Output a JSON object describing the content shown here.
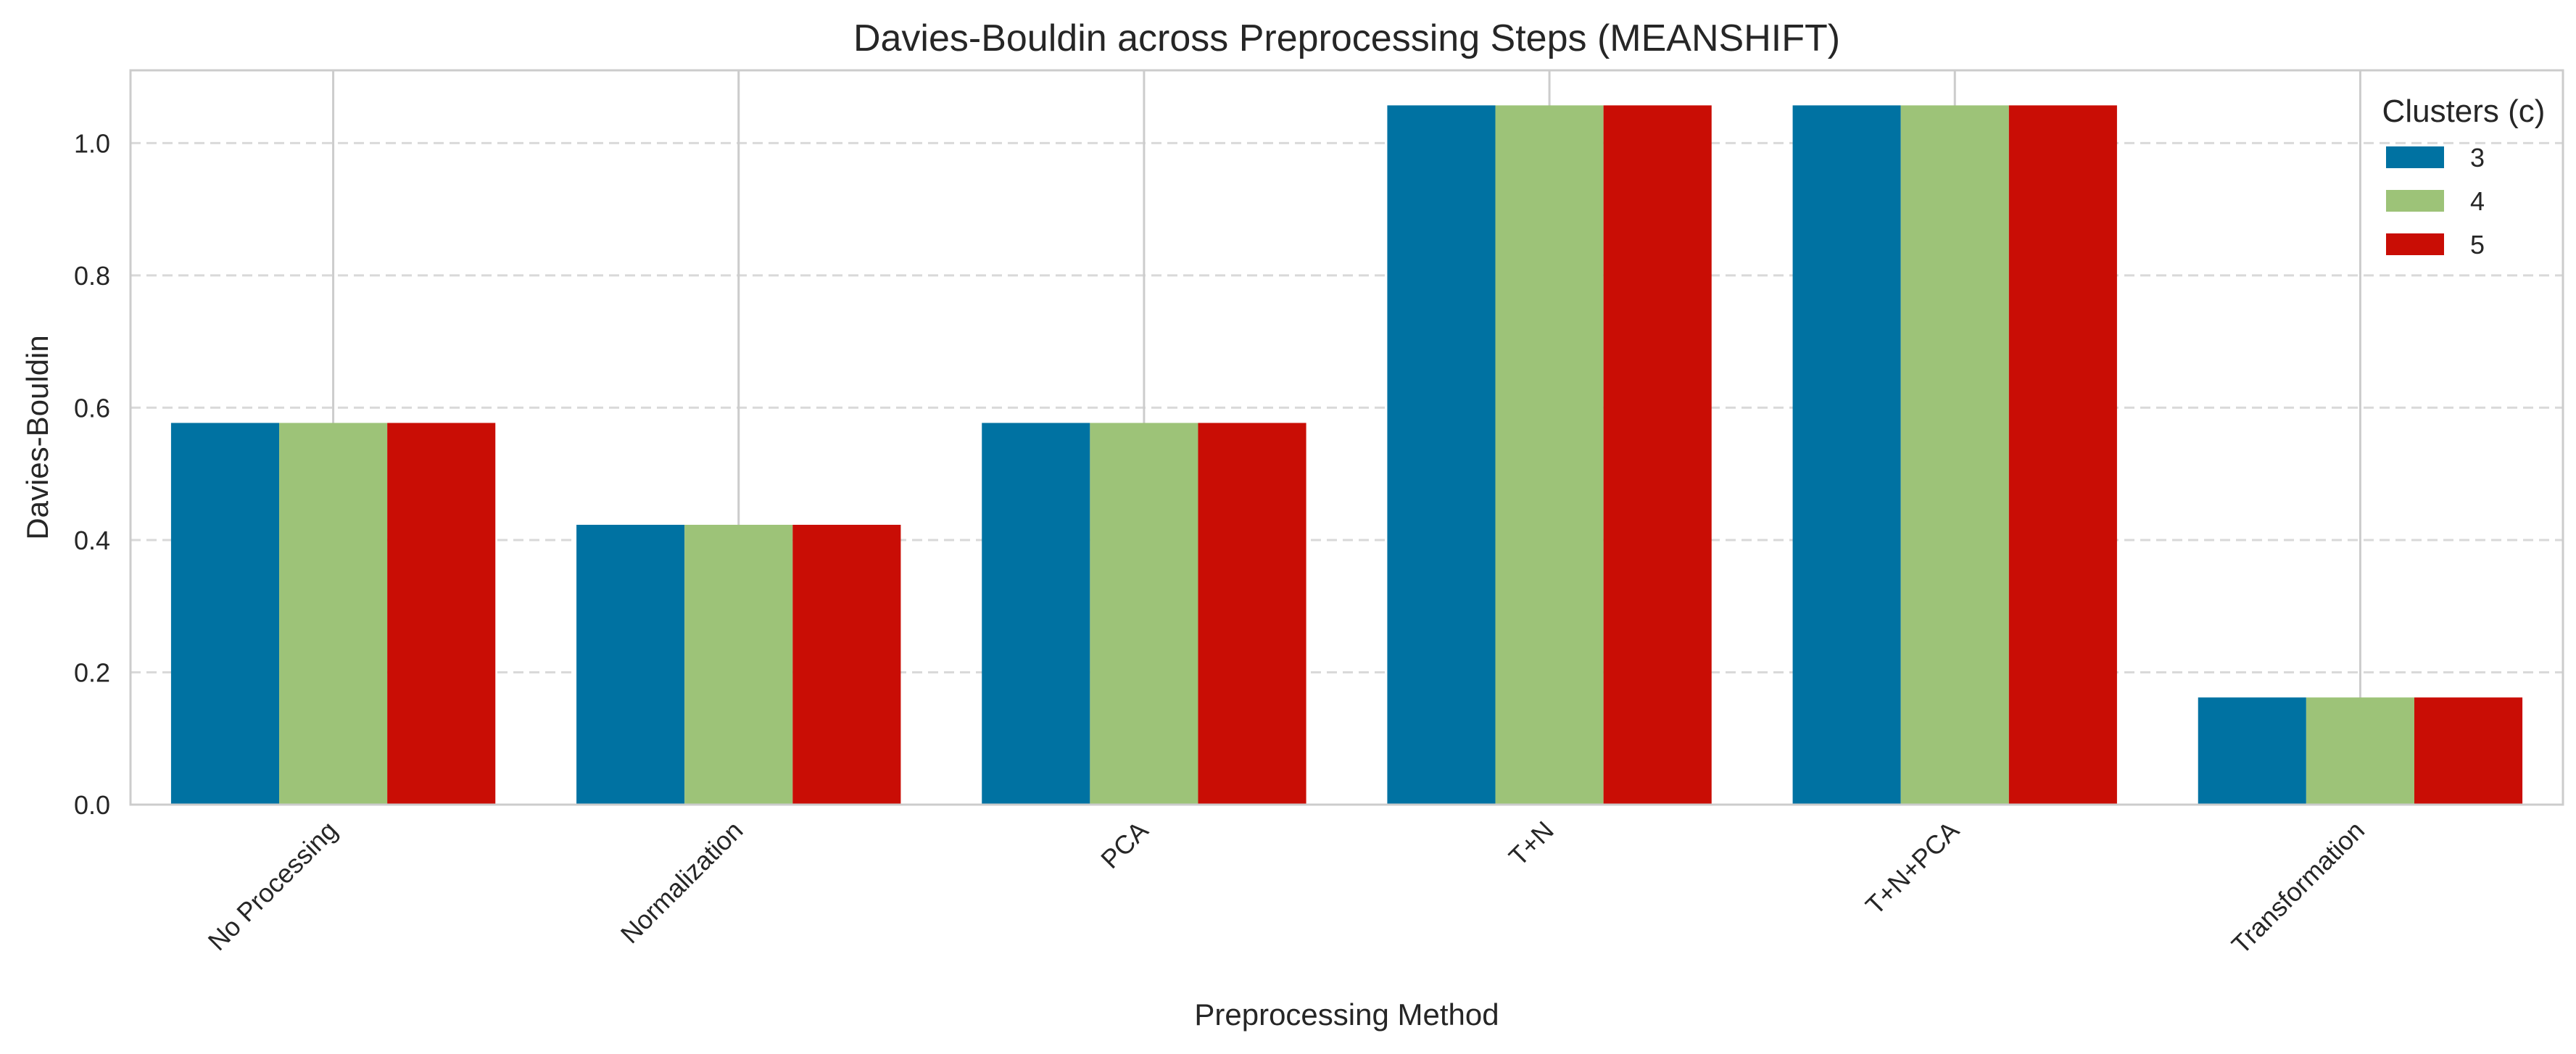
{
  "chart_data": {
    "type": "bar",
    "title": "Davies-Bouldin across Preprocessing Steps (MEANSHIFT)",
    "xlabel": "Preprocessing Method",
    "ylabel": "Davies-Bouldin",
    "categories": [
      "No Processing",
      "Normalization",
      "PCA",
      "T+N",
      "T+N+PCA",
      "Transformation"
    ],
    "series": [
      {
        "name": "3",
        "color": "#0072A2",
        "values": [
          0.577,
          0.423,
          0.577,
          1.057,
          1.057,
          0.162
        ]
      },
      {
        "name": "4",
        "color": "#9DC378",
        "values": [
          0.577,
          0.423,
          0.577,
          1.057,
          1.057,
          0.162
        ]
      },
      {
        "name": "5",
        "color": "#C90D05",
        "values": [
          0.577,
          0.423,
          0.577,
          1.057,
          1.057,
          0.162
        ]
      }
    ],
    "ylim": [
      0,
      1.11
    ],
    "yticks": [
      0.0,
      0.2,
      0.4,
      0.6,
      0.8,
      1.0
    ],
    "ytick_labels": [
      "0.0",
      "0.2",
      "0.4",
      "0.6",
      "0.8",
      "1.0"
    ],
    "grid": true,
    "legend": {
      "title": "Clusters (c)",
      "placement": "top-right"
    }
  }
}
